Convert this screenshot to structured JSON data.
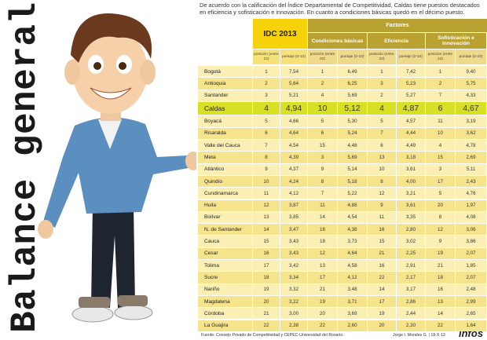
{
  "title": "Balance general",
  "intro": "De acuerdo con la calificación del Índice Departamental de Competitividad, Caldas tiene puestos destacados en eficiencia y sofisticación e innovación. En cuanto a condiciones básicas quedó en el décimo puesto.",
  "table": {
    "idc_header": "IDC 2013",
    "factors_header": "Factores",
    "factor_groups": [
      "Condiciones básicas",
      "Eficiencia",
      "Sofisticación e innovación"
    ],
    "subheaders": [
      "posición (entre 22)",
      "puntaje (0-10)",
      "posición (entre 22)",
      "puntaje (0-10)",
      "posición (entre 22)",
      "puntaje (0-10)",
      "posición (entre 22)",
      "puntaje (0-10)"
    ],
    "rows": [
      {
        "name": "Bogotá",
        "values": [
          "1",
          "7,54",
          "1",
          "6,49",
          "1",
          "7,42",
          "1",
          "9,40"
        ]
      },
      {
        "name": "Antioquia",
        "values": [
          "2",
          "5,64",
          "2",
          "6,25",
          "3",
          "5,23",
          "2",
          "5,75"
        ]
      },
      {
        "name": "Santander",
        "values": [
          "3",
          "5,21",
          "4",
          "5,69",
          "2",
          "5,27",
          "7",
          "4,33"
        ]
      },
      {
        "name": "Caldas",
        "values": [
          "4",
          "4,94",
          "10",
          "5,12",
          "4",
          "4,87",
          "6",
          "4,67"
        ]
      },
      {
        "name": "Boyacá",
        "values": [
          "5",
          "4,66",
          "5",
          "5,30",
          "5",
          "4,57",
          "11",
          "3,19"
        ]
      },
      {
        "name": "Risaralda",
        "values": [
          "6",
          "4,64",
          "6",
          "5,24",
          "7",
          "4,44",
          "10",
          "3,62"
        ]
      },
      {
        "name": "Valle del Cauca",
        "values": [
          "7",
          "4,54",
          "15",
          "4,48",
          "6",
          "4,49",
          "4",
          "4,78"
        ]
      },
      {
        "name": "Meta",
        "values": [
          "8",
          "4,39",
          "3",
          "5,69",
          "13",
          "3,18",
          "15",
          "2,69"
        ]
      },
      {
        "name": "Atlántico",
        "values": [
          "9",
          "4,37",
          "9",
          "5,14",
          "10",
          "3,61",
          "3",
          "5,11"
        ]
      },
      {
        "name": "Quindío",
        "values": [
          "10",
          "4,24",
          "8",
          "5,18",
          "8",
          "4,00",
          "17",
          "2,43"
        ]
      },
      {
        "name": "Cundinamarca",
        "values": [
          "11",
          "4,12",
          "7",
          "5,22",
          "12",
          "3,21",
          "5",
          "4,76"
        ]
      },
      {
        "name": "Huila",
        "values": [
          "12",
          "3,87",
          "11",
          "4,88",
          "9",
          "3,61",
          "20",
          "1,97"
        ]
      },
      {
        "name": "Bolívar",
        "values": [
          "13",
          "3,85",
          "14",
          "4,54",
          "11",
          "3,35",
          "8",
          "4,08"
        ]
      },
      {
        "name": "N. de Santander",
        "values": [
          "14",
          "3,47",
          "16",
          "4,38",
          "16",
          "2,80",
          "12",
          "3,06"
        ]
      },
      {
        "name": "Cauca",
        "values": [
          "15",
          "3,43",
          "18",
          "3,73",
          "15",
          "3,02",
          "9",
          "3,86"
        ]
      },
      {
        "name": "Cesar",
        "values": [
          "16",
          "3,43",
          "12",
          "4,64",
          "21",
          "2,25",
          "19",
          "2,07"
        ]
      },
      {
        "name": "Tolima",
        "values": [
          "17",
          "3,42",
          "13",
          "4,58",
          "16",
          "2,91",
          "21",
          "1,85"
        ]
      },
      {
        "name": "Sucre",
        "values": [
          "18",
          "3,34",
          "17",
          "4,12",
          "22",
          "2,17",
          "18",
          "2,07"
        ]
      },
      {
        "name": "Nariño",
        "values": [
          "19",
          "3,32",
          "21",
          "3,48",
          "14",
          "3,17",
          "16",
          "2,48"
        ]
      },
      {
        "name": "Magdalena",
        "values": [
          "20",
          "3,22",
          "19",
          "3,71",
          "17",
          "2,86",
          "13",
          "2,99"
        ]
      },
      {
        "name": "Córdoba",
        "values": [
          "21",
          "3,00",
          "20",
          "3,69",
          "19",
          "2,44",
          "14",
          "2,65"
        ]
      },
      {
        "name": "La Guajira",
        "values": [
          "22",
          "2,38",
          "22",
          "2,60",
          "20",
          "2,30",
          "22",
          "1,64"
        ]
      }
    ]
  },
  "footer": {
    "source": "Fuente: Consejo Privado de Competitividad y CEPEC-Universidad del Rosario.",
    "credit": "Jorge I. Morales G. | 18-X-13",
    "logo": "ínfos"
  }
}
